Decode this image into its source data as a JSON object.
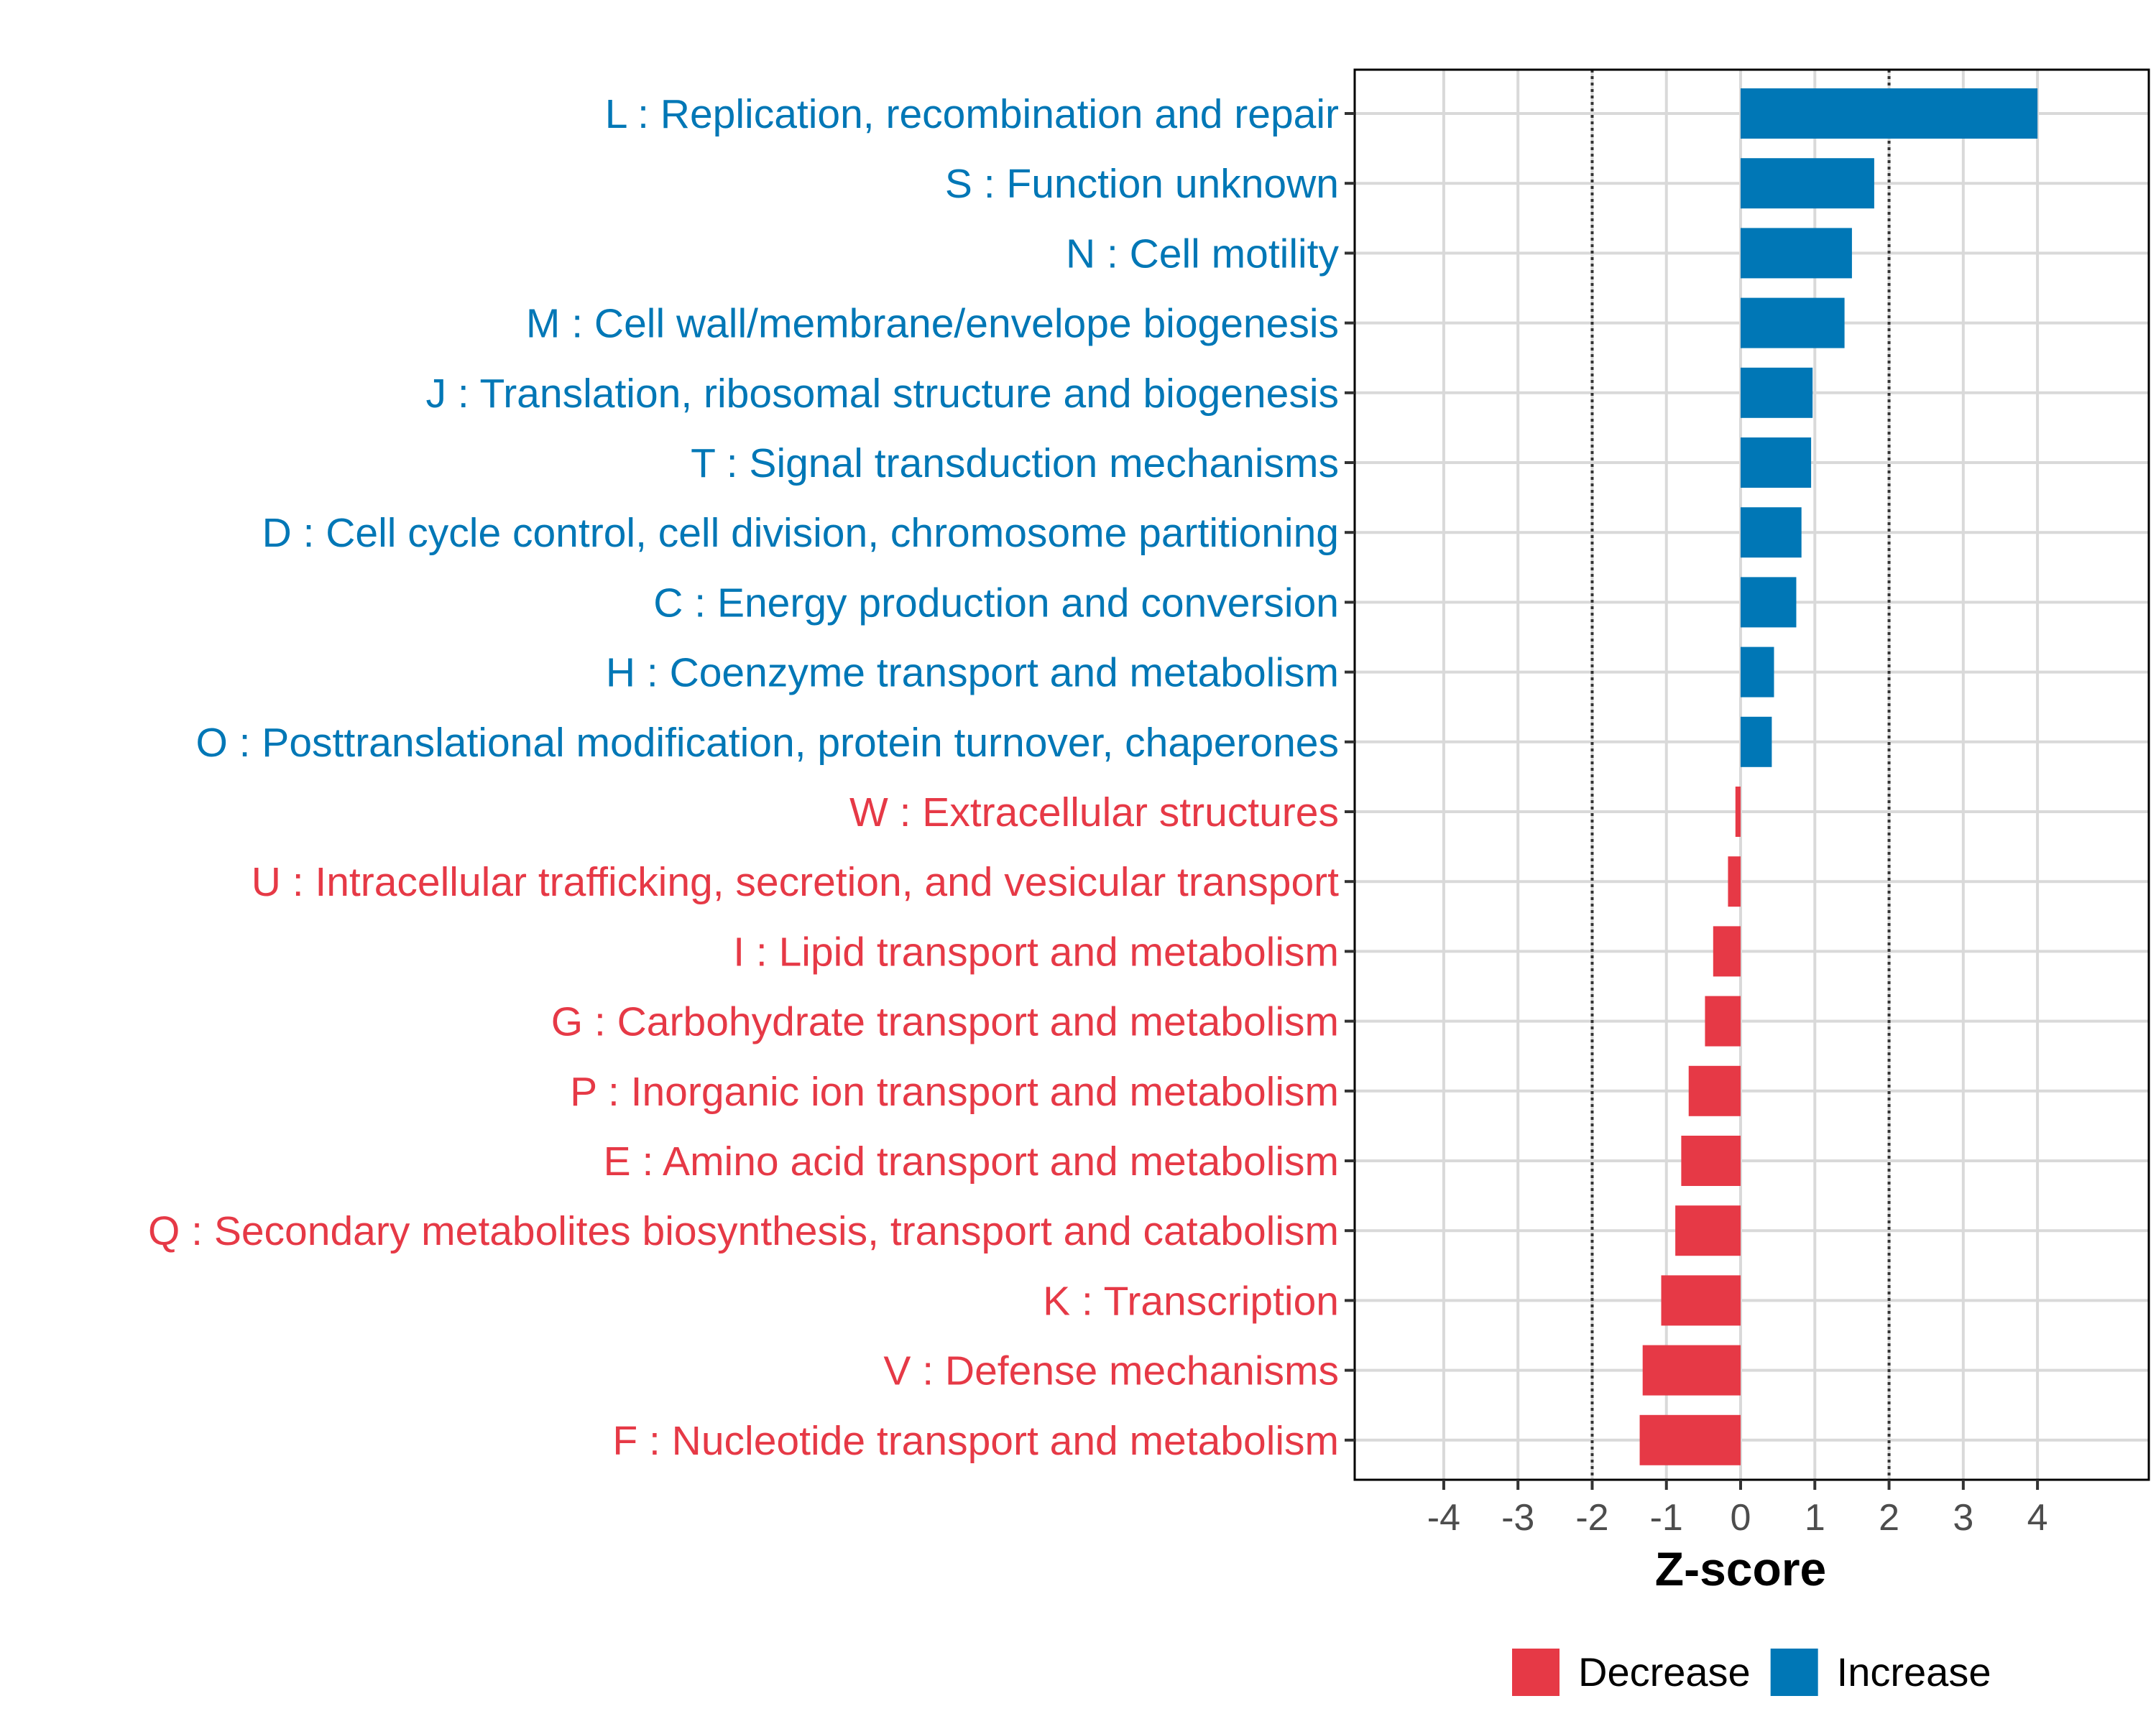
{
  "chart_data": {
    "type": "bar",
    "orientation": "horizontal",
    "xlabel": "Z-score",
    "ylabel": "",
    "xlim": [
      -5.2,
      5.5
    ],
    "x_ticks": [
      -4,
      -3,
      -2,
      -1,
      0,
      1,
      2,
      3,
      4
    ],
    "reference_lines": [
      -2,
      2
    ],
    "grid": true,
    "legend_position": "bottom",
    "colors": {
      "Decrease": "#E63946",
      "Increase": "#0077B6"
    },
    "legend": [
      {
        "key": "Decrease",
        "label": "Decrease"
      },
      {
        "key": "Increase",
        "label": "Increase"
      }
    ],
    "categories": [
      "L : Replication, recombination and repair",
      "S : Function unknown",
      "N : Cell motility",
      "M : Cell wall/membrane/envelope biogenesis",
      "J : Translation, ribosomal structure and biogenesis",
      "T : Signal transduction mechanisms",
      "D : Cell cycle control, cell division, chromosome partitioning",
      "C : Energy production and conversion",
      "H : Coenzyme transport and metabolism",
      "O : Posttranslational modification, protein turnover, chaperones",
      "W : Extracellular structures",
      "U : Intracellular trafficking, secretion, and vesicular transport",
      "I : Lipid transport and metabolism",
      "G : Carbohydrate transport and metabolism",
      "P : Inorganic ion transport and metabolism",
      "E : Amino acid transport and metabolism",
      "Q : Secondary metabolites biosynthesis, transport and catabolism",
      "K : Transcription",
      "V : Defense mechanisms",
      "F : Nucleotide transport and metabolism"
    ],
    "values": [
      4.0,
      1.8,
      1.5,
      1.4,
      0.97,
      0.95,
      0.82,
      0.75,
      0.45,
      0.42,
      -0.07,
      -0.17,
      -0.37,
      -0.48,
      -0.7,
      -0.8,
      -0.88,
      -1.07,
      -1.32,
      -1.36
    ],
    "direction": [
      "Increase",
      "Increase",
      "Increase",
      "Increase",
      "Increase",
      "Increase",
      "Increase",
      "Increase",
      "Increase",
      "Increase",
      "Decrease",
      "Decrease",
      "Decrease",
      "Decrease",
      "Decrease",
      "Decrease",
      "Decrease",
      "Decrease",
      "Decrease",
      "Decrease"
    ]
  }
}
